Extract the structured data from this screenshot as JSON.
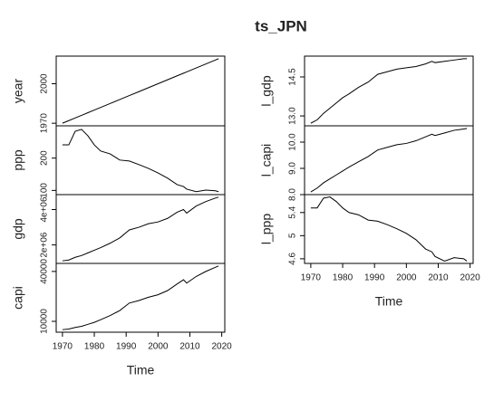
{
  "title": "ts_JPN",
  "chart_data": [
    {
      "type": "line",
      "ylabel": "year",
      "color": "#000000",
      "x": [
        1970,
        1972,
        1974,
        1976,
        1978,
        1980,
        1982,
        1985,
        1988,
        1991,
        1994,
        1997,
        2000,
        2003,
        2006,
        2008,
        2009,
        2012,
        2015,
        2018,
        2019
      ],
      "values": [
        1970,
        1972,
        1974,
        1976,
        1978,
        1980,
        1982,
        1985,
        1988,
        1991,
        1994,
        1997,
        2000,
        2003,
        2006,
        2008,
        2009,
        2012,
        2015,
        2018,
        2019
      ],
      "xlim": [
        1968.04,
        2020.96
      ],
      "ylim": [
        1968.04,
        2020.96
      ],
      "yticks": [
        1970,
        2000
      ]
    },
    {
      "type": "line",
      "ylabel": "ppp",
      "color": "#000000",
      "x": [
        1970,
        1972,
        1974,
        1976,
        1978,
        1980,
        1982,
        1985,
        1988,
        1991,
        1994,
        1997,
        2000,
        2003,
        2006,
        2008,
        2009,
        2012,
        2015,
        2018,
        2019
      ],
      "values": [
        241,
        241,
        283,
        289,
        269,
        241,
        222,
        213,
        194,
        191,
        180,
        168,
        154,
        138,
        118,
        112,
        104,
        96,
        101,
        99,
        96
      ],
      "xlim": [
        1968.04,
        2020.96
      ],
      "ylim": [
        87,
        300
      ],
      "yticks": [
        100,
        200
      ]
    },
    {
      "type": "line",
      "ylabel": "gdp",
      "color": "#000000",
      "x": [
        1970,
        1972,
        1974,
        1976,
        1978,
        1980,
        1982,
        1985,
        1988,
        1991,
        1994,
        1997,
        2000,
        2003,
        2006,
        2008,
        2009,
        2012,
        2015,
        2018,
        2019
      ],
      "values": [
        1100000,
        1150000,
        1300000,
        1400000,
        1550000,
        1700000,
        1850000,
        2100000,
        2400000,
        2850000,
        3000000,
        3200000,
        3300000,
        3500000,
        3850000,
        4000000,
        3800000,
        4200000,
        4450000,
        4650000,
        4700000
      ],
      "xlim": [
        1968.04,
        2020.96
      ],
      "ylim": [
        956000,
        4844000
      ],
      "yticks": [
        {
          "value": 2000000,
          "label": "2e+06"
        },
        {
          "value": 4000000,
          "label": "4e+06"
        }
      ]
    },
    {
      "type": "line",
      "ylabel": "capi",
      "color": "#000000",
      "xlabel": "Time",
      "x": [
        1970,
        1972,
        1974,
        1976,
        1978,
        1980,
        1982,
        1985,
        1988,
        1991,
        1994,
        1997,
        2000,
        2003,
        2006,
        2008,
        2009,
        2012,
        2015,
        2018,
        2019
      ],
      "values": [
        5000,
        5400,
        6300,
        7000,
        8200,
        9400,
        11000,
        13500,
        16500,
        21000,
        22500,
        24500,
        26000,
        28500,
        32500,
        35000,
        33000,
        37000,
        40000,
        42500,
        43300
      ],
      "xlim": [
        1968.04,
        2020.96
      ],
      "ylim": [
        3468,
        44832
      ],
      "yticks": [
        10000,
        40000
      ],
      "xticks": [
        1970,
        1980,
        1990,
        2000,
        2010,
        2020
      ]
    },
    {
      "type": "line",
      "ylabel": "l_gdp",
      "color": "#000000",
      "x": [
        1970,
        1972,
        1974,
        1976,
        1978,
        1980,
        1982,
        1985,
        1988,
        1991,
        1994,
        1997,
        2000,
        2003,
        2006,
        2008,
        2009,
        2012,
        2015,
        2018,
        2019
      ],
      "values": [
        12.72,
        12.85,
        13.1,
        13.3,
        13.5,
        13.7,
        13.85,
        14.1,
        14.3,
        14.6,
        14.7,
        14.8,
        14.85,
        14.9,
        15.0,
        15.1,
        15.05,
        15.1,
        15.15,
        15.2,
        15.2
      ],
      "xlim": [
        1968.04,
        2020.96
      ],
      "ylim": [
        12.62,
        15.3
      ],
      "yticks": [
        {
          "value": 13,
          "label": "13.0"
        },
        14.5
      ]
    },
    {
      "type": "line",
      "ylabel": "l_capi",
      "color": "#000000",
      "x": [
        1970,
        1972,
        1974,
        1976,
        1978,
        1980,
        1982,
        1985,
        1988,
        1991,
        1994,
        1997,
        2000,
        2003,
        2006,
        2008,
        2009,
        2012,
        2015,
        2018,
        2019
      ],
      "values": [
        8.1,
        8.25,
        8.45,
        8.6,
        8.75,
        8.9,
        9.05,
        9.25,
        9.45,
        9.7,
        9.8,
        9.9,
        9.95,
        10.05,
        10.2,
        10.3,
        10.25,
        10.35,
        10.45,
        10.5,
        10.52
      ],
      "xlim": [
        1968.04,
        2020.96
      ],
      "ylim": [
        8.0,
        10.62
      ],
      "yticks": [
        {
          "value": 8,
          "label": "8.0"
        },
        {
          "value": 9,
          "label": "9.0"
        },
        {
          "value": 10,
          "label": "10.0"
        }
      ]
    },
    {
      "type": "line",
      "ylabel": "l_ppp",
      "color": "#000000",
      "xlabel": "Time",
      "x": [
        1970,
        1972,
        1974,
        1976,
        1978,
        1980,
        1982,
        1985,
        1988,
        1991,
        1994,
        1997,
        2000,
        2003,
        2006,
        2008,
        2009,
        2012,
        2015,
        2018,
        2019
      ],
      "values": [
        5.48,
        5.48,
        5.65,
        5.67,
        5.59,
        5.48,
        5.4,
        5.36,
        5.27,
        5.25,
        5.19,
        5.12,
        5.04,
        4.93,
        4.77,
        4.72,
        4.64,
        4.56,
        4.62,
        4.6,
        4.56
      ],
      "xlim": [
        1968.04,
        2020.96
      ],
      "ylim": [
        4.52,
        5.71
      ],
      "yticks": [
        4.6,
        5.0,
        5.4
      ],
      "xticks": [
        1970,
        1980,
        1990,
        2000,
        2010,
        2020
      ]
    }
  ]
}
